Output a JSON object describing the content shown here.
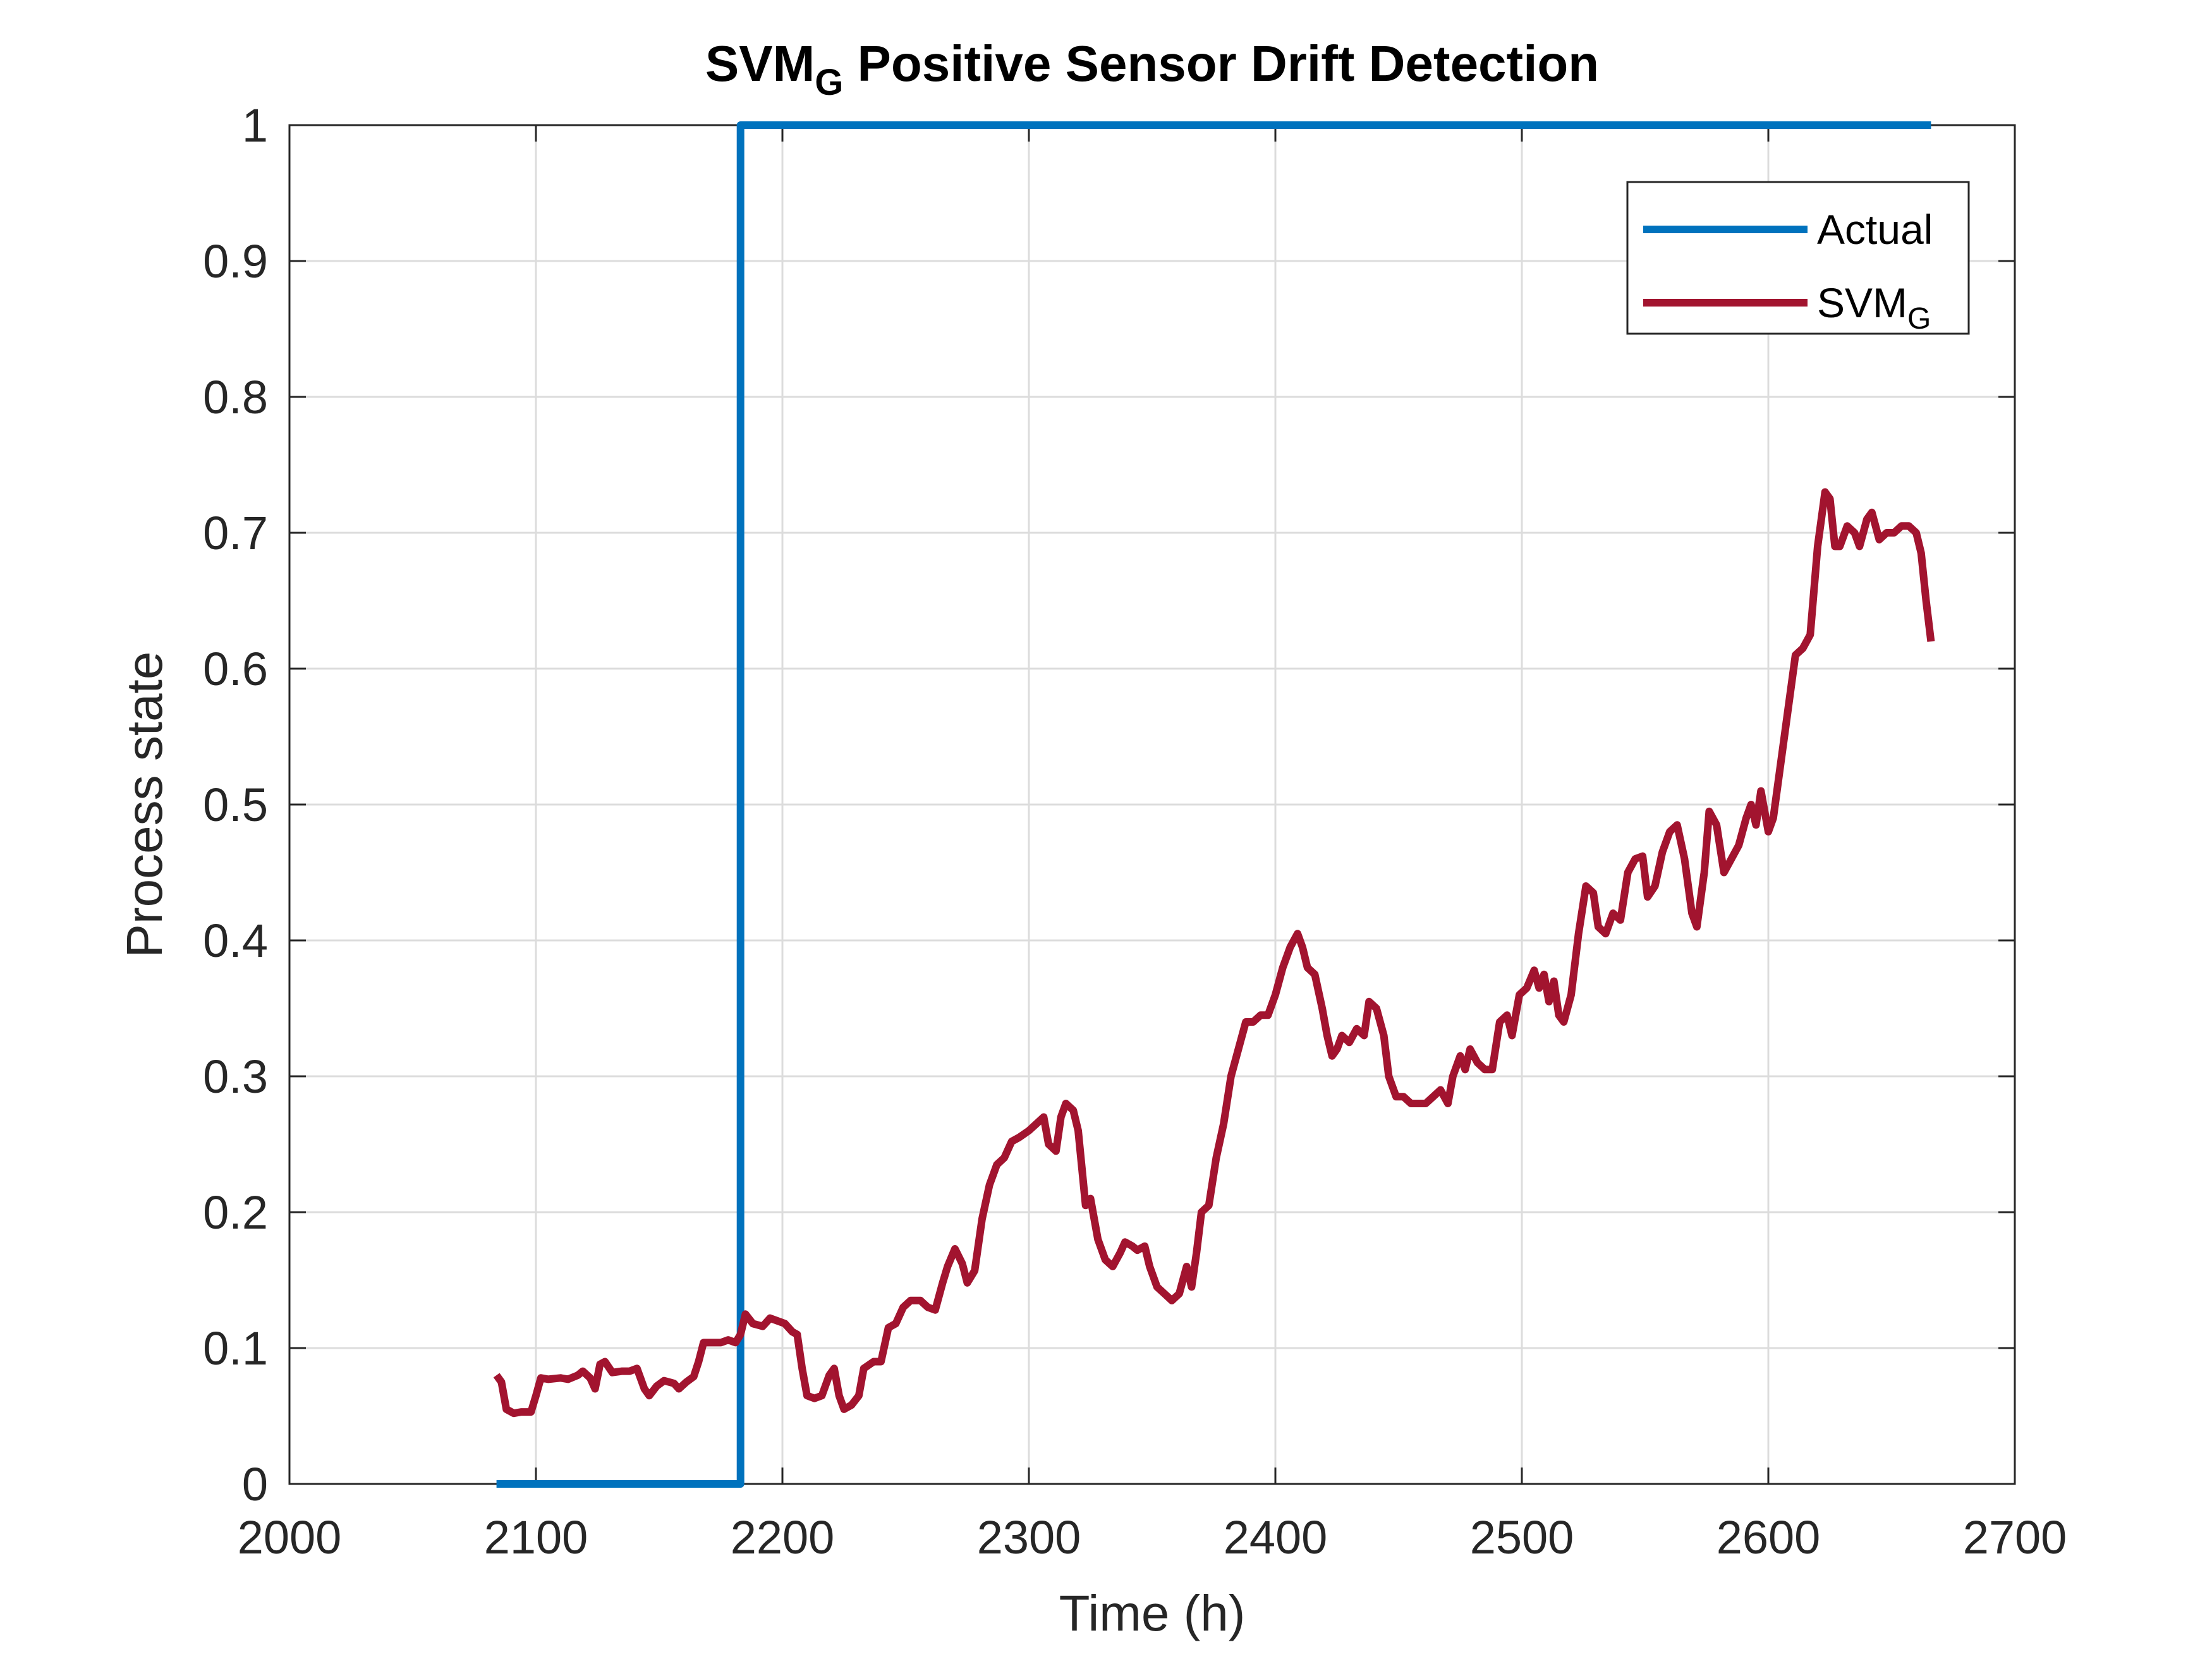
{
  "chart_data": {
    "type": "line",
    "title": "SVM",
    "title_subscript": "G",
    "title_rest": " Positive Sensor Drift Detection",
    "xlabel": "Time (h)",
    "ylabel": "Process state",
    "xlim": [
      2000,
      2700
    ],
    "ylim": [
      0,
      1
    ],
    "xticks": [
      2000,
      2100,
      2200,
      2300,
      2400,
      2500,
      2600,
      2700
    ],
    "yticks": [
      0,
      0.1,
      0.2,
      0.3,
      0.4,
      0.5,
      0.6,
      0.7,
      0.8,
      0.9,
      1
    ],
    "xtick_labels": [
      "2000",
      "2100",
      "2200",
      "2300",
      "2400",
      "2500",
      "2600",
      "2700"
    ],
    "ytick_labels": [
      "0",
      "0.1",
      "0.2",
      "0.3",
      "0.4",
      "0.5",
      "0.6",
      "0.7",
      "0.8",
      "0.9",
      "1"
    ],
    "grid": true,
    "legend_position": "top-right",
    "series": [
      {
        "name": "Actual",
        "color": "#0072BD",
        "points": [
          [
            2084,
            0
          ],
          [
            2183,
            0
          ],
          [
            2183,
            1
          ],
          [
            2666,
            1
          ]
        ]
      },
      {
        "name": "SVM",
        "name_subscript": "G",
        "color": "#A2142F",
        "points": [
          [
            2084,
            0.08
          ],
          [
            2086,
            0.075
          ],
          [
            2088,
            0.055
          ],
          [
            2091,
            0.052
          ],
          [
            2094,
            0.053
          ],
          [
            2098,
            0.053
          ],
          [
            2100,
            0.065
          ],
          [
            2102,
            0.078
          ],
          [
            2105,
            0.077
          ],
          [
            2110,
            0.078
          ],
          [
            2113,
            0.077
          ],
          [
            2117,
            0.08
          ],
          [
            2119,
            0.083
          ],
          [
            2122,
            0.078
          ],
          [
            2124,
            0.07
          ],
          [
            2126,
            0.088
          ],
          [
            2128,
            0.09
          ],
          [
            2131,
            0.082
          ],
          [
            2135,
            0.083
          ],
          [
            2138,
            0.083
          ],
          [
            2141,
            0.085
          ],
          [
            2144,
            0.07
          ],
          [
            2146,
            0.065
          ],
          [
            2149,
            0.072
          ],
          [
            2152,
            0.076
          ],
          [
            2156,
            0.074
          ],
          [
            2158,
            0.07
          ],
          [
            2161,
            0.075
          ],
          [
            2164,
            0.079
          ],
          [
            2166,
            0.09
          ],
          [
            2168,
            0.104
          ],
          [
            2171,
            0.104
          ],
          [
            2175,
            0.104
          ],
          [
            2178,
            0.106
          ],
          [
            2181,
            0.104
          ],
          [
            2183,
            0.11
          ],
          [
            2185,
            0.125
          ],
          [
            2188,
            0.118
          ],
          [
            2192,
            0.116
          ],
          [
            2195,
            0.122
          ],
          [
            2198,
            0.12
          ],
          [
            2201,
            0.118
          ],
          [
            2204,
            0.112
          ],
          [
            2206,
            0.11
          ],
          [
            2208,
            0.085
          ],
          [
            2210,
            0.065
          ],
          [
            2213,
            0.063
          ],
          [
            2216,
            0.065
          ],
          [
            2219,
            0.08
          ],
          [
            2221,
            0.085
          ],
          [
            2223,
            0.065
          ],
          [
            2225,
            0.055
          ],
          [
            2228,
            0.058
          ],
          [
            2231,
            0.065
          ],
          [
            2233,
            0.085
          ],
          [
            2237,
            0.09
          ],
          [
            2240,
            0.09
          ],
          [
            2243,
            0.115
          ],
          [
            2246,
            0.118
          ],
          [
            2249,
            0.13
          ],
          [
            2252,
            0.135
          ],
          [
            2256,
            0.135
          ],
          [
            2259,
            0.13
          ],
          [
            2262,
            0.128
          ],
          [
            2265,
            0.148
          ],
          [
            2267,
            0.16
          ],
          [
            2270,
            0.173
          ],
          [
            2273,
            0.162
          ],
          [
            2275,
            0.148
          ],
          [
            2278,
            0.157
          ],
          [
            2281,
            0.195
          ],
          [
            2284,
            0.22
          ],
          [
            2287,
            0.235
          ],
          [
            2290,
            0.24
          ],
          [
            2293,
            0.252
          ],
          [
            2296,
            0.255
          ],
          [
            2300,
            0.26
          ],
          [
            2303,
            0.265
          ],
          [
            2306,
            0.27
          ],
          [
            2308,
            0.25
          ],
          [
            2311,
            0.245
          ],
          [
            2313,
            0.27
          ],
          [
            2315,
            0.28
          ],
          [
            2318,
            0.275
          ],
          [
            2320,
            0.26
          ],
          [
            2323,
            0.205
          ],
          [
            2325,
            0.21
          ],
          [
            2328,
            0.18
          ],
          [
            2331,
            0.165
          ],
          [
            2334,
            0.16
          ],
          [
            2337,
            0.17
          ],
          [
            2339,
            0.178
          ],
          [
            2342,
            0.175
          ],
          [
            2344,
            0.172
          ],
          [
            2347,
            0.175
          ],
          [
            2349,
            0.16
          ],
          [
            2352,
            0.145
          ],
          [
            2355,
            0.14
          ],
          [
            2358,
            0.135
          ],
          [
            2361,
            0.14
          ],
          [
            2364,
            0.16
          ],
          [
            2366,
            0.145
          ],
          [
            2368,
            0.17
          ],
          [
            2370,
            0.2
          ],
          [
            2373,
            0.205
          ],
          [
            2376,
            0.24
          ],
          [
            2379,
            0.265
          ],
          [
            2382,
            0.3
          ],
          [
            2385,
            0.32
          ],
          [
            2388,
            0.34
          ],
          [
            2391,
            0.34
          ],
          [
            2394,
            0.345
          ],
          [
            2397,
            0.345
          ],
          [
            2400,
            0.36
          ],
          [
            2403,
            0.38
          ],
          [
            2406,
            0.395
          ],
          [
            2409,
            0.405
          ],
          [
            2411,
            0.395
          ],
          [
            2413,
            0.38
          ],
          [
            2416,
            0.375
          ],
          [
            2419,
            0.35
          ],
          [
            2421,
            0.33
          ],
          [
            2423,
            0.315
          ],
          [
            2425,
            0.32
          ],
          [
            2427,
            0.33
          ],
          [
            2430,
            0.325
          ],
          [
            2433,
            0.335
          ],
          [
            2436,
            0.33
          ],
          [
            2438,
            0.355
          ],
          [
            2441,
            0.35
          ],
          [
            2444,
            0.33
          ],
          [
            2446,
            0.3
          ],
          [
            2449,
            0.285
          ],
          [
            2452,
            0.285
          ],
          [
            2455,
            0.28
          ],
          [
            2458,
            0.28
          ],
          [
            2461,
            0.28
          ],
          [
            2464,
            0.285
          ],
          [
            2467,
            0.29
          ],
          [
            2470,
            0.28
          ],
          [
            2472,
            0.3
          ],
          [
            2475,
            0.315
          ],
          [
            2477,
            0.305
          ],
          [
            2479,
            0.32
          ],
          [
            2482,
            0.31
          ],
          [
            2485,
            0.305
          ],
          [
            2488,
            0.305
          ],
          [
            2491,
            0.34
          ],
          [
            2494,
            0.345
          ],
          [
            2496,
            0.33
          ],
          [
            2499,
            0.36
          ],
          [
            2502,
            0.365
          ],
          [
            2505,
            0.378
          ],
          [
            2507,
            0.365
          ],
          [
            2509,
            0.375
          ],
          [
            2511,
            0.355
          ],
          [
            2513,
            0.37
          ],
          [
            2515,
            0.345
          ],
          [
            2517,
            0.34
          ],
          [
            2520,
            0.36
          ],
          [
            2523,
            0.405
          ],
          [
            2526,
            0.44
          ],
          [
            2529,
            0.435
          ],
          [
            2531,
            0.41
          ],
          [
            2534,
            0.405
          ],
          [
            2537,
            0.42
          ],
          [
            2540,
            0.415
          ],
          [
            2543,
            0.45
          ],
          [
            2546,
            0.46
          ],
          [
            2549,
            0.462
          ],
          [
            2551,
            0.432
          ],
          [
            2554,
            0.44
          ],
          [
            2557,
            0.465
          ],
          [
            2560,
            0.48
          ],
          [
            2563,
            0.485
          ],
          [
            2566,
            0.46
          ],
          [
            2569,
            0.42
          ],
          [
            2571,
            0.41
          ],
          [
            2574,
            0.45
          ],
          [
            2576,
            0.495
          ],
          [
            2579,
            0.485
          ],
          [
            2582,
            0.45
          ],
          [
            2585,
            0.46
          ],
          [
            2588,
            0.47
          ],
          [
            2591,
            0.49
          ],
          [
            2593,
            0.5
          ],
          [
            2595,
            0.485
          ],
          [
            2597,
            0.51
          ],
          [
            2600,
            0.48
          ],
          [
            2602,
            0.49
          ],
          [
            2605,
            0.53
          ],
          [
            2608,
            0.57
          ],
          [
            2611,
            0.61
          ],
          [
            2614,
            0.615
          ],
          [
            2617,
            0.625
          ],
          [
            2620,
            0.69
          ],
          [
            2623,
            0.73
          ],
          [
            2625,
            0.725
          ],
          [
            2627,
            0.69
          ],
          [
            2629,
            0.69
          ],
          [
            2632,
            0.705
          ],
          [
            2635,
            0.7
          ],
          [
            2637,
            0.69
          ],
          [
            2640,
            0.71
          ],
          [
            2642,
            0.715
          ],
          [
            2645,
            0.695
          ],
          [
            2648,
            0.7
          ],
          [
            2651,
            0.7
          ],
          [
            2654,
            0.705
          ],
          [
            2657,
            0.705
          ],
          [
            2660,
            0.7
          ],
          [
            2662,
            0.685
          ],
          [
            2664,
            0.65
          ],
          [
            2666,
            0.62
          ]
        ]
      }
    ]
  }
}
